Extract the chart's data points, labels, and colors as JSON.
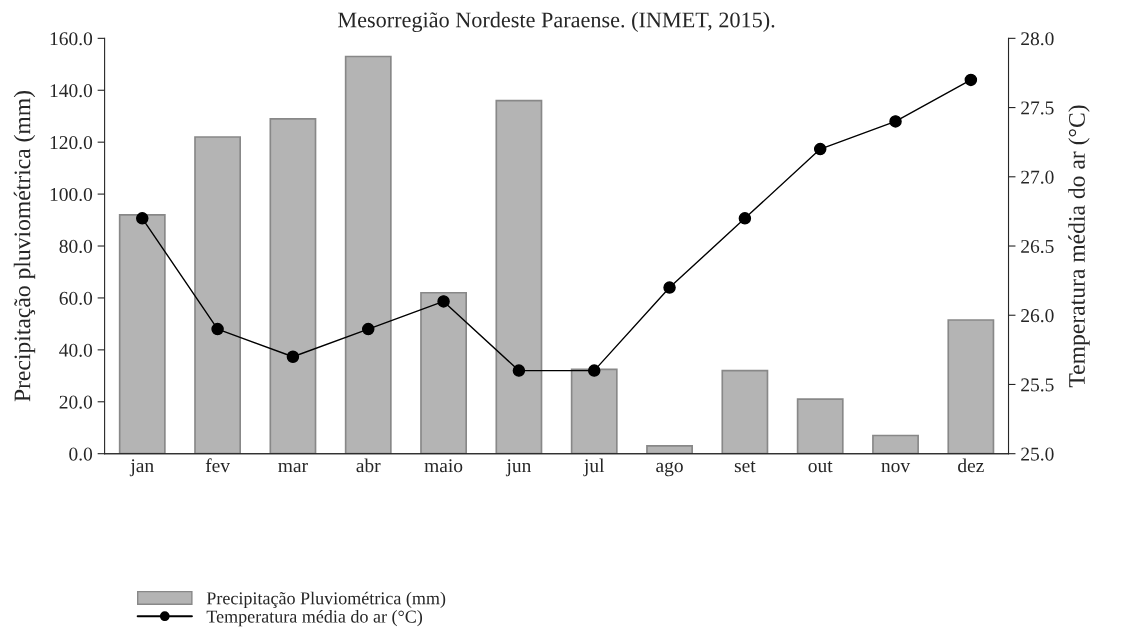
{
  "chart_data": {
    "type": "bar",
    "title": "Mesorregião Nordeste Paraense. (INMET, 2015).",
    "categories": [
      "jan",
      "fev",
      "mar",
      "abr",
      "maio",
      "jun",
      "jul",
      "ago",
      "set",
      "out",
      "nov",
      "dez"
    ],
    "series": [
      {
        "name": "Precipitação Pluviométrica (mm)",
        "color": "#b4b4b4",
        "values": [
          92,
          122,
          129,
          153,
          62,
          136,
          32.5,
          3,
          32,
          21,
          7,
          51.5
        ]
      },
      {
        "name": "Temperatura média do ar (°C)",
        "type": "line",
        "axis": "y2",
        "color": "#000000",
        "marker": "circle",
        "values": [
          26.7,
          25.9,
          25.7,
          25.9,
          26.1,
          25.6,
          25.6,
          26.2,
          26.7,
          27.2,
          27.4,
          27.7
        ]
      }
    ],
    "ylabel": "Precipitação pluviométrica (mm)",
    "y2label": "Temperatura média do ar (°C)",
    "ylim": [
      0,
      160
    ],
    "yticks": [
      {
        "value": 0,
        "label": "0.0"
      },
      {
        "value": 20,
        "label": "20.0"
      },
      {
        "value": 40,
        "label": "40.0"
      },
      {
        "value": 60,
        "label": "60.0"
      },
      {
        "value": 80,
        "label": "80.0"
      },
      {
        "value": 100,
        "label": "100.0"
      },
      {
        "value": 120,
        "label": "120.0"
      },
      {
        "value": 140,
        "label": "140.0"
      },
      {
        "value": 160,
        "label": "160.0"
      }
    ],
    "y2lim": [
      25,
      28
    ],
    "y2ticks": [
      {
        "value": 25,
        "label": "25.0"
      },
      {
        "value": 25.5,
        "label": "25.5"
      },
      {
        "value": 26,
        "label": "26.0"
      },
      {
        "value": 26.5,
        "label": "26.5"
      },
      {
        "value": 27,
        "label": "27.0"
      },
      {
        "value": 27.5,
        "label": "27.5"
      },
      {
        "value": 28,
        "label": "28.0"
      }
    ],
    "legend": "bottom left",
    "grid": false
  }
}
